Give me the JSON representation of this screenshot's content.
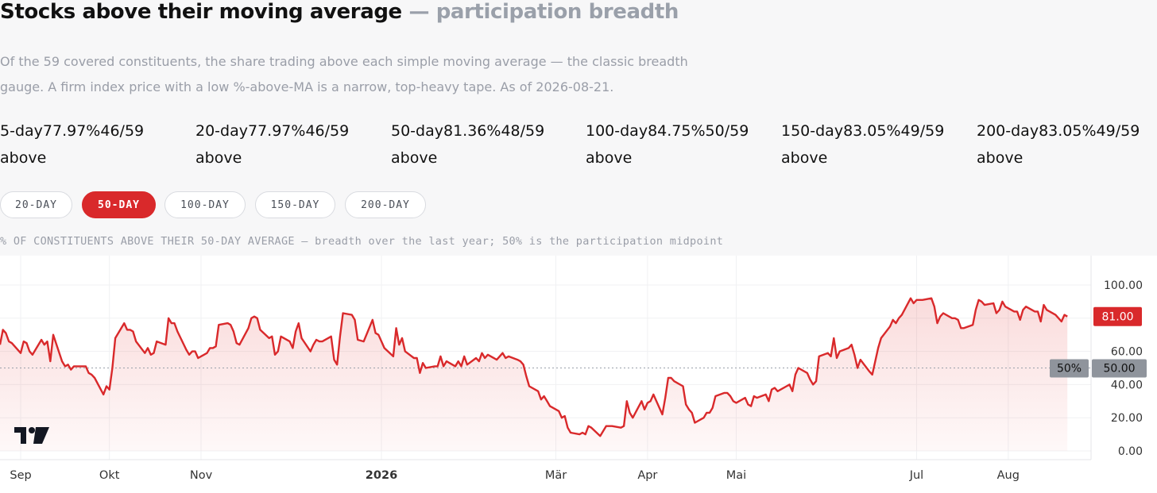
{
  "header": {
    "title": "Stocks above their moving average",
    "subtitle": "— participation breadth"
  },
  "description": "Of the 59 covered constituents, the share trading above each simple moving average — the classic breadth gauge. A firm index price with a low %-above-MA is a narrow, top-heavy tape. As of 2026-08-21.",
  "stats": [
    {
      "label": "5-day",
      "pct": "77.97%",
      "count": "46/59",
      "suffix": "above"
    },
    {
      "label": "20-day",
      "pct": "77.97%",
      "count": "46/59",
      "suffix": "above"
    },
    {
      "label": "50-day",
      "pct": "81.36%",
      "count": "48/59",
      "suffix": "above"
    },
    {
      "label": "100-day",
      "pct": "84.75%",
      "count": "50/59",
      "suffix": "above"
    },
    {
      "label": "150-day",
      "pct": "83.05%",
      "count": "49/59",
      "suffix": "above"
    },
    {
      "label": "200-day",
      "pct": "83.05%",
      "count": "49/59",
      "suffix": "above"
    }
  ],
  "tabs": [
    {
      "label": "20-DAY",
      "active": false
    },
    {
      "label": "50-DAY",
      "active": true
    },
    {
      "label": "100-DAY",
      "active": false
    },
    {
      "label": "150-DAY",
      "active": false
    },
    {
      "label": "200-DAY",
      "active": false
    }
  ],
  "caption": "% OF CONSTITUENTS ABOVE THEIR 50-DAY AVERAGE — breadth over the last year; 50% is the participation midpoint",
  "colors": {
    "accent": "#d9292b",
    "midline_label": "#8f949c"
  },
  "chart_data": {
    "type": "area",
    "y_ticks": [
      "100.00",
      "60.00",
      "40.00",
      "20.00",
      "0.00"
    ],
    "y_tick_values": [
      100,
      60,
      40,
      20,
      0
    ],
    "ylim": [
      0,
      100
    ],
    "x_ticks": [
      {
        "label": "Sep",
        "date": "2025-09-01",
        "bold": false
      },
      {
        "label": "Okt",
        "date": "2025-10-01",
        "bold": false
      },
      {
        "label": "Nov",
        "date": "2025-11-01",
        "bold": false
      },
      {
        "label": "2026",
        "date": "2026-01-01",
        "bold": true
      },
      {
        "label": "Mär",
        "date": "2026-03-01",
        "bold": false
      },
      {
        "label": "Apr",
        "date": "2026-04-01",
        "bold": false
      },
      {
        "label": "Mai",
        "date": "2026-05-01",
        "bold": false
      },
      {
        "label": "Jul",
        "date": "2026-07-01",
        "bold": false
      },
      {
        "label": "Aug",
        "date": "2026-08-01",
        "bold": false
      }
    ],
    "x_range": [
      "2025-08-25",
      "2026-08-29"
    ],
    "series": [
      {
        "values": [
          [
            "2025-08-25",
            64
          ],
          [
            "2025-08-26",
            73
          ],
          [
            "2025-08-27",
            71
          ],
          [
            "2025-08-28",
            66
          ],
          [
            "2025-08-29",
            65
          ],
          [
            "2025-09-01",
            59
          ],
          [
            "2025-09-02",
            66
          ],
          [
            "2025-09-03",
            65
          ],
          [
            "2025-09-04",
            60
          ],
          [
            "2025-09-05",
            58
          ],
          [
            "2025-09-08",
            67
          ],
          [
            "2025-09-09",
            64
          ],
          [
            "2025-09-10",
            66
          ],
          [
            "2025-09-11",
            54
          ],
          [
            "2025-09-12",
            70
          ],
          [
            "2025-09-15",
            54
          ],
          [
            "2025-09-16",
            51
          ],
          [
            "2025-09-17",
            52
          ],
          [
            "2025-09-18",
            49
          ],
          [
            "2025-09-19",
            51
          ],
          [
            "2025-09-22",
            51
          ],
          [
            "2025-09-23",
            51
          ],
          [
            "2025-09-24",
            47
          ],
          [
            "2025-09-25",
            46
          ],
          [
            "2025-09-26",
            44
          ],
          [
            "2025-09-29",
            34
          ],
          [
            "2025-09-30",
            39
          ],
          [
            "2025-10-01",
            37
          ],
          [
            "2025-10-02",
            50
          ],
          [
            "2025-10-03",
            68
          ],
          [
            "2025-10-06",
            77
          ],
          [
            "2025-10-07",
            73
          ],
          [
            "2025-10-08",
            73
          ],
          [
            "2025-10-09",
            72
          ],
          [
            "2025-10-10",
            66
          ],
          [
            "2025-10-13",
            59
          ],
          [
            "2025-10-14",
            62
          ],
          [
            "2025-10-15",
            58
          ],
          [
            "2025-10-16",
            59
          ],
          [
            "2025-10-17",
            66
          ],
          [
            "2025-10-20",
            64
          ],
          [
            "2025-10-21",
            80
          ],
          [
            "2025-10-22",
            77
          ],
          [
            "2025-10-23",
            77
          ],
          [
            "2025-10-24",
            72
          ],
          [
            "2025-10-27",
            61
          ],
          [
            "2025-10-28",
            58
          ],
          [
            "2025-10-29",
            60
          ],
          [
            "2025-10-30",
            60
          ],
          [
            "2025-10-31",
            56
          ],
          [
            "2025-11-03",
            59
          ],
          [
            "2025-11-04",
            62
          ],
          [
            "2025-11-05",
            62
          ],
          [
            "2025-11-06",
            63
          ],
          [
            "2025-11-07",
            76
          ],
          [
            "2025-11-10",
            77
          ],
          [
            "2025-11-11",
            76
          ],
          [
            "2025-11-12",
            72
          ],
          [
            "2025-11-13",
            65
          ],
          [
            "2025-11-14",
            64
          ],
          [
            "2025-11-17",
            74
          ],
          [
            "2025-11-18",
            80
          ],
          [
            "2025-11-19",
            81
          ],
          [
            "2025-11-20",
            80
          ],
          [
            "2025-11-21",
            73
          ],
          [
            "2025-11-24",
            68
          ],
          [
            "2025-11-25",
            69
          ],
          [
            "2025-11-26",
            58
          ],
          [
            "2025-11-27",
            60
          ],
          [
            "2025-11-28",
            69
          ],
          [
            "2025-12-01",
            66
          ],
          [
            "2025-12-02",
            62
          ],
          [
            "2025-12-03",
            72
          ],
          [
            "2025-12-04",
            77
          ],
          [
            "2025-12-05",
            68
          ],
          [
            "2025-12-08",
            60
          ],
          [
            "2025-12-09",
            64
          ],
          [
            "2025-12-10",
            67
          ],
          [
            "2025-12-11",
            66
          ],
          [
            "2025-12-12",
            66
          ],
          [
            "2025-12-15",
            69
          ],
          [
            "2025-12-16",
            55
          ],
          [
            "2025-12-17",
            52
          ],
          [
            "2025-12-18",
            69
          ],
          [
            "2025-12-19",
            83
          ],
          [
            "2025-12-22",
            82
          ],
          [
            "2025-12-23",
            79
          ],
          [
            "2025-12-24",
            67
          ],
          [
            "2025-12-26",
            66
          ],
          [
            "2025-12-29",
            79
          ],
          [
            "2025-12-30",
            71
          ],
          [
            "2025-12-31",
            70
          ],
          [
            "2026-01-02",
            62
          ],
          [
            "2026-01-05",
            57
          ],
          [
            "2026-01-06",
            74
          ],
          [
            "2026-01-07",
            64
          ],
          [
            "2026-01-08",
            68
          ],
          [
            "2026-01-09",
            60
          ],
          [
            "2026-01-12",
            56
          ],
          [
            "2026-01-13",
            56
          ],
          [
            "2026-01-14",
            47
          ],
          [
            "2026-01-15",
            53
          ],
          [
            "2026-01-16",
            50
          ],
          [
            "2026-01-19",
            51
          ],
          [
            "2026-01-20",
            51
          ],
          [
            "2026-01-21",
            57
          ],
          [
            "2026-01-22",
            51
          ],
          [
            "2026-01-23",
            54
          ],
          [
            "2026-01-26",
            51
          ],
          [
            "2026-01-27",
            54
          ],
          [
            "2026-01-28",
            51
          ],
          [
            "2026-01-29",
            57
          ],
          [
            "2026-01-30",
            52
          ],
          [
            "2026-02-02",
            56
          ],
          [
            "2026-02-03",
            54
          ],
          [
            "2026-02-04",
            59
          ],
          [
            "2026-02-05",
            56
          ],
          [
            "2026-02-06",
            58
          ],
          [
            "2026-02-09",
            55
          ],
          [
            "2026-02-10",
            57
          ],
          [
            "2026-02-11",
            59
          ],
          [
            "2026-02-12",
            56
          ],
          [
            "2026-02-13",
            57
          ],
          [
            "2026-02-16",
            55
          ],
          [
            "2026-02-17",
            54
          ],
          [
            "2026-02-18",
            52
          ],
          [
            "2026-02-19",
            45
          ],
          [
            "2026-02-20",
            39
          ],
          [
            "2026-02-23",
            36
          ],
          [
            "2026-02-24",
            31
          ],
          [
            "2026-02-25",
            33
          ],
          [
            "2026-02-26",
            30
          ],
          [
            "2026-02-27",
            27
          ],
          [
            "2026-03-02",
            24
          ],
          [
            "2026-03-03",
            20
          ],
          [
            "2026-03-04",
            21
          ],
          [
            "2026-03-05",
            14
          ],
          [
            "2026-03-06",
            11
          ],
          [
            "2026-03-09",
            10
          ],
          [
            "2026-03-10",
            11
          ],
          [
            "2026-03-11",
            10
          ],
          [
            "2026-03-12",
            15
          ],
          [
            "2026-03-13",
            14
          ],
          [
            "2026-03-16",
            9
          ],
          [
            "2026-03-17",
            12
          ],
          [
            "2026-03-18",
            15
          ],
          [
            "2026-03-19",
            15
          ],
          [
            "2026-03-20",
            15
          ],
          [
            "2026-03-23",
            14
          ],
          [
            "2026-03-24",
            15
          ],
          [
            "2026-03-25",
            30
          ],
          [
            "2026-03-26",
            23
          ],
          [
            "2026-03-27",
            20
          ],
          [
            "2026-03-30",
            30
          ],
          [
            "2026-03-31",
            25
          ],
          [
            "2026-04-01",
            29
          ],
          [
            "2026-04-02",
            30
          ],
          [
            "2026-04-03",
            34
          ],
          [
            "2026-04-06",
            22
          ],
          [
            "2026-04-07",
            32
          ],
          [
            "2026-04-08",
            44
          ],
          [
            "2026-04-09",
            44
          ],
          [
            "2026-04-10",
            42
          ],
          [
            "2026-04-13",
            39
          ],
          [
            "2026-04-14",
            28
          ],
          [
            "2026-04-15",
            25
          ],
          [
            "2026-04-16",
            23
          ],
          [
            "2026-04-17",
            17
          ],
          [
            "2026-04-20",
            20
          ],
          [
            "2026-04-21",
            23
          ],
          [
            "2026-04-22",
            23
          ],
          [
            "2026-04-23",
            26
          ],
          [
            "2026-04-24",
            33
          ],
          [
            "2026-04-27",
            35
          ],
          [
            "2026-04-28",
            35
          ],
          [
            "2026-04-29",
            33
          ],
          [
            "2026-04-30",
            30
          ],
          [
            "2026-05-01",
            29
          ],
          [
            "2026-05-04",
            32
          ],
          [
            "2026-05-05",
            28
          ],
          [
            "2026-05-06",
            27
          ],
          [
            "2026-05-07",
            33
          ],
          [
            "2026-05-08",
            32
          ],
          [
            "2026-05-11",
            34
          ],
          [
            "2026-05-12",
            30
          ],
          [
            "2026-05-13",
            37
          ],
          [
            "2026-05-14",
            38
          ],
          [
            "2026-05-15",
            36
          ],
          [
            "2026-05-18",
            39
          ],
          [
            "2026-05-19",
            40
          ],
          [
            "2026-05-20",
            36
          ],
          [
            "2026-05-21",
            46
          ],
          [
            "2026-05-22",
            50
          ],
          [
            "2026-05-25",
            47
          ],
          [
            "2026-05-26",
            43
          ],
          [
            "2026-05-27",
            40
          ],
          [
            "2026-05-28",
            42
          ],
          [
            "2026-05-29",
            57
          ],
          [
            "2026-06-01",
            59
          ],
          [
            "2026-06-02",
            57
          ],
          [
            "2026-06-03",
            68
          ],
          [
            "2026-06-04",
            56
          ],
          [
            "2026-06-05",
            60
          ],
          [
            "2026-06-08",
            62
          ],
          [
            "2026-06-09",
            64
          ],
          [
            "2026-06-10",
            58
          ],
          [
            "2026-06-11",
            50
          ],
          [
            "2026-06-12",
            55
          ],
          [
            "2026-06-15",
            48
          ],
          [
            "2026-06-16",
            46
          ],
          [
            "2026-06-17",
            54
          ],
          [
            "2026-06-18",
            62
          ],
          [
            "2026-06-19",
            68
          ],
          [
            "2026-06-22",
            75
          ],
          [
            "2026-06-23",
            79
          ],
          [
            "2026-06-24",
            77
          ],
          [
            "2026-06-25",
            80
          ],
          [
            "2026-06-26",
            82
          ],
          [
            "2026-06-29",
            92
          ],
          [
            "2026-06-30",
            89
          ],
          [
            "2026-07-01",
            91
          ],
          [
            "2026-07-02",
            91
          ],
          [
            "2026-07-03",
            91
          ],
          [
            "2026-07-06",
            92
          ],
          [
            "2026-07-07",
            87
          ],
          [
            "2026-07-08",
            77
          ],
          [
            "2026-07-09",
            81
          ],
          [
            "2026-07-10",
            83
          ],
          [
            "2026-07-13",
            80
          ],
          [
            "2026-07-14",
            80
          ],
          [
            "2026-07-15",
            79
          ],
          [
            "2026-07-16",
            74
          ],
          [
            "2026-07-17",
            74
          ],
          [
            "2026-07-20",
            76
          ],
          [
            "2026-07-21",
            85
          ],
          [
            "2026-07-22",
            91
          ],
          [
            "2026-07-23",
            90
          ],
          [
            "2026-07-24",
            88
          ],
          [
            "2026-07-27",
            89
          ],
          [
            "2026-07-28",
            83
          ],
          [
            "2026-07-29",
            85
          ],
          [
            "2026-07-30",
            90
          ],
          [
            "2026-07-31",
            87
          ],
          [
            "2026-08-03",
            84
          ],
          [
            "2026-08-04",
            84
          ],
          [
            "2026-08-05",
            79
          ],
          [
            "2026-08-06",
            85
          ],
          [
            "2026-08-07",
            87
          ],
          [
            "2026-08-10",
            84
          ],
          [
            "2026-08-11",
            84
          ],
          [
            "2026-08-12",
            78
          ],
          [
            "2026-08-13",
            88
          ],
          [
            "2026-08-14",
            85
          ],
          [
            "2026-08-17",
            82
          ],
          [
            "2026-08-18",
            80
          ],
          [
            "2026-08-19",
            78
          ],
          [
            "2026-08-20",
            82
          ],
          [
            "2026-08-21",
            81
          ]
        ]
      }
    ],
    "last_value_label": "81.00",
    "midline": {
      "value": 50,
      "label": "50%",
      "axis_label": "50.00"
    },
    "grid": true,
    "logo": "tradingview-logo"
  }
}
